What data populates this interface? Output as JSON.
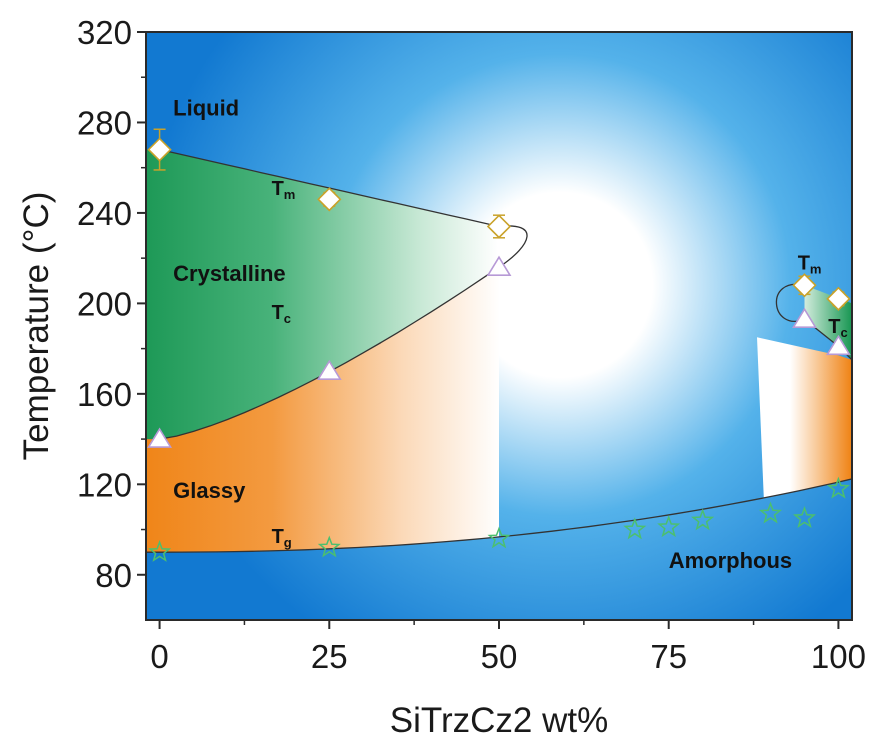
{
  "chart_data": {
    "type": "scatter",
    "xlabel": "SiTrzCz2 wt%",
    "ylabel": "Temperature (°C)",
    "xlim": [
      -2,
      102
    ],
    "ylim": [
      60,
      320
    ],
    "xticks": [
      0,
      25,
      50,
      75,
      100
    ],
    "yticks": [
      80,
      120,
      160,
      200,
      240,
      280,
      320
    ],
    "grid": false,
    "legend": "none",
    "colors": {
      "liquid": "#1a7fd4",
      "crystalline": "#1e9e5c",
      "glassy": "#f08a1e",
      "melting_marker": "#c9a22a",
      "crystallization_marker": "#b79ad6",
      "glass_marker": "#4cbf6e",
      "curve": "#333333"
    },
    "region_labels": [
      {
        "text": "Liquid",
        "x": 2,
        "y": 283
      },
      {
        "text": "Crystalline",
        "x": 2,
        "y": 210
      },
      {
        "text": "Glassy",
        "x": 2,
        "y": 114
      },
      {
        "text": "Amorphous",
        "x": 75,
        "y": 83
      }
    ],
    "curve_labels": [
      {
        "main": "T",
        "sub": "m",
        "x": 16.5,
        "y": 248
      },
      {
        "main": "T",
        "sub": "c",
        "x": 16.5,
        "y": 193
      },
      {
        "main": "T",
        "sub": "g",
        "x": 16.5,
        "y": 94
      },
      {
        "main": "T",
        "sub": "m",
        "x": 94,
        "y": 215
      },
      {
        "main": "T",
        "sub": "c",
        "x": 98.5,
        "y": 187
      }
    ],
    "series": [
      {
        "marker": "diamond",
        "x": [
          0,
          25,
          50,
          95,
          100
        ],
        "y": [
          268,
          246,
          234,
          208,
          202
        ],
        "yerr": [
          9,
          3,
          5,
          4,
          3
        ]
      },
      {
        "marker": "triangle",
        "x": [
          0,
          25,
          50,
          95,
          100
        ],
        "y": [
          140,
          170,
          216,
          193,
          181
        ]
      },
      {
        "marker": "star",
        "x": [
          0,
          25,
          50,
          70,
          75,
          80,
          90,
          95,
          100
        ],
        "y": [
          90,
          92,
          96,
          100,
          101,
          104,
          107,
          105,
          118
        ]
      }
    ]
  }
}
